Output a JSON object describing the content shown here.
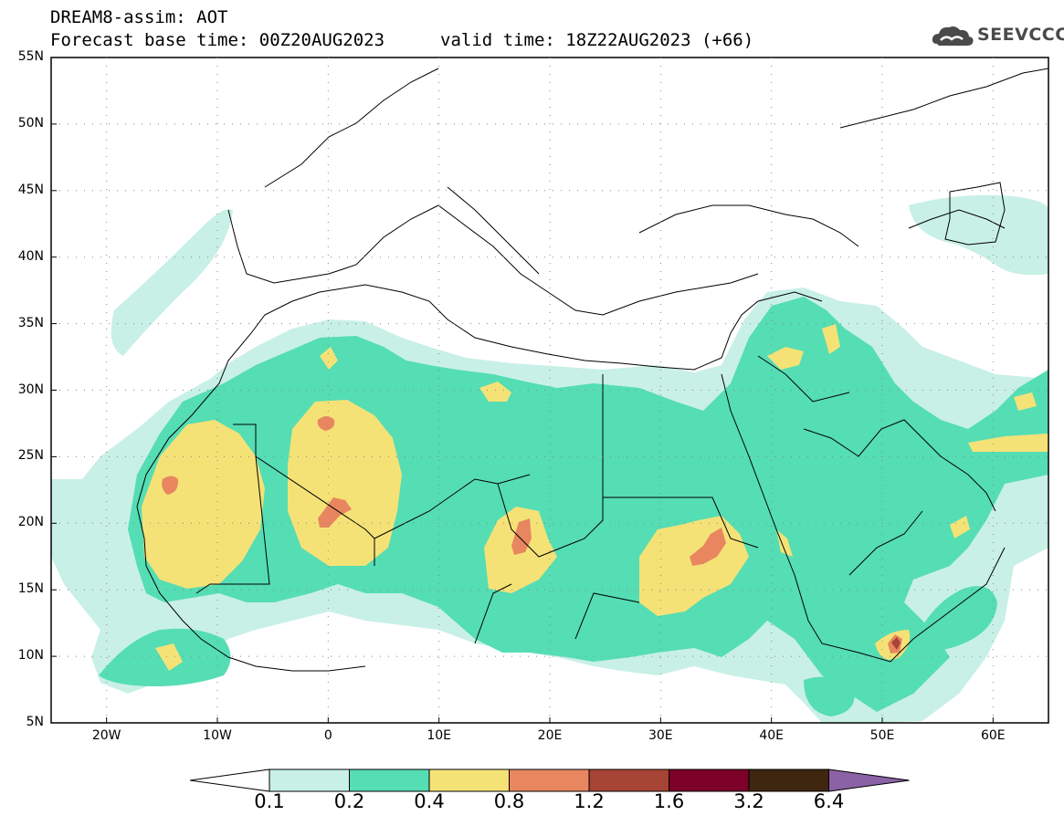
{
  "header": {
    "title": "DREAM8-assim: AOT",
    "base_time": "Forecast base time: 00Z20AUG2023",
    "valid_time": "valid time: 18Z22AUG2023 (+66)"
  },
  "logo": {
    "text": "SEEVCCC",
    "icon": "cloud-icon"
  },
  "map": {
    "lat_labels": [
      "55N",
      "50N",
      "45N",
      "40N",
      "35N",
      "30N",
      "25N",
      "20N",
      "15N",
      "10N",
      "5N"
    ],
    "lon_labels": [
      "20W",
      "10W",
      "0",
      "10E",
      "20E",
      "30E",
      "40E",
      "50E",
      "60E"
    ],
    "extent": {
      "lon_min": -25,
      "lon_max": 65,
      "lat_min": 5,
      "lat_max": 55
    }
  },
  "colorbar": {
    "levels": [
      "0.1",
      "0.2",
      "0.4",
      "0.8",
      "1.2",
      "1.6",
      "3.2",
      "6.4"
    ],
    "colors": [
      "#ffffff",
      "#c8f0e6",
      "#55ddb4",
      "#f5e277",
      "#e8875f",
      "#a64436",
      "#7c0027",
      "#3f2611",
      "#8b62a6"
    ]
  }
}
